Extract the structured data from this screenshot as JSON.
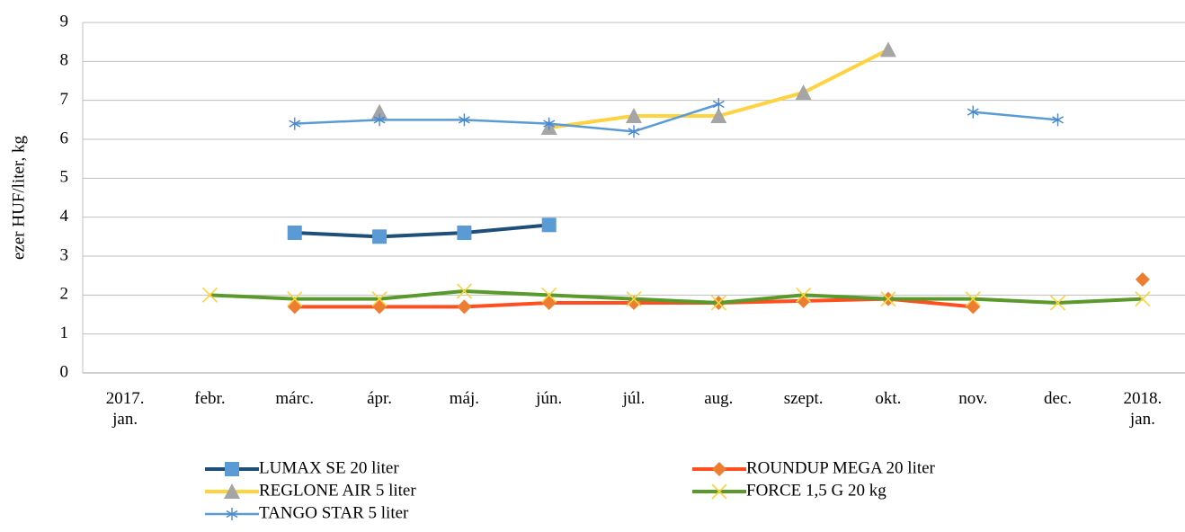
{
  "chart_data": {
    "type": "line",
    "y_label": "ezer HUF/liter, kg",
    "categories": [
      "2017.\njan.",
      "febr.",
      "márc.",
      "ápr.",
      "máj.",
      "jún.",
      "júl.",
      "aug.",
      "szept.",
      "okt.",
      "nov.",
      "dec.",
      "2018.\njan."
    ],
    "ylim": [
      0,
      9
    ],
    "yticks": [
      0,
      1,
      2,
      3,
      4,
      5,
      6,
      7,
      8,
      9
    ],
    "grid": true,
    "legend": "bottom",
    "series": [
      {
        "name": "LUMAX SE 20 liter",
        "color": "#1f4e79",
        "marker_color": "#5b9bd5",
        "marker": "square",
        "values": [
          null,
          null,
          3.6,
          3.5,
          3.6,
          3.8,
          null,
          null,
          null,
          null,
          null,
          null,
          null
        ]
      },
      {
        "name": "ROUNDUP MEGA 20 liter",
        "color": "#ff4f1f",
        "marker_color": "#ed7d31",
        "marker": "diamond",
        "values": [
          null,
          null,
          1.7,
          1.7,
          1.7,
          1.8,
          1.8,
          1.8,
          1.85,
          1.9,
          1.7,
          null,
          2.4
        ]
      },
      {
        "name": "REGLONE AIR 5 liter",
        "color": "#ffd23f",
        "marker_color": "#a5a5a5",
        "marker": "triangle",
        "values": [
          null,
          null,
          null,
          6.7,
          null,
          6.3,
          6.6,
          6.6,
          7.2,
          8.3,
          null,
          null,
          null
        ]
      },
      {
        "name": "FORCE 1,5 G 20 kg",
        "color": "#5a9a2c",
        "marker_color": "#ffd23f",
        "marker": "x",
        "values": [
          null,
          2.0,
          1.9,
          1.9,
          2.1,
          2.0,
          1.9,
          1.8,
          2.0,
          1.9,
          1.9,
          1.8,
          1.9
        ]
      },
      {
        "name": "TANGO STAR 5 liter",
        "color": "#5b9bd5",
        "marker_color": "#4a86d0",
        "marker": "star",
        "values": [
          null,
          null,
          6.4,
          6.5,
          6.5,
          6.4,
          6.2,
          6.9,
          null,
          null,
          6.7,
          6.5,
          null
        ]
      }
    ]
  }
}
